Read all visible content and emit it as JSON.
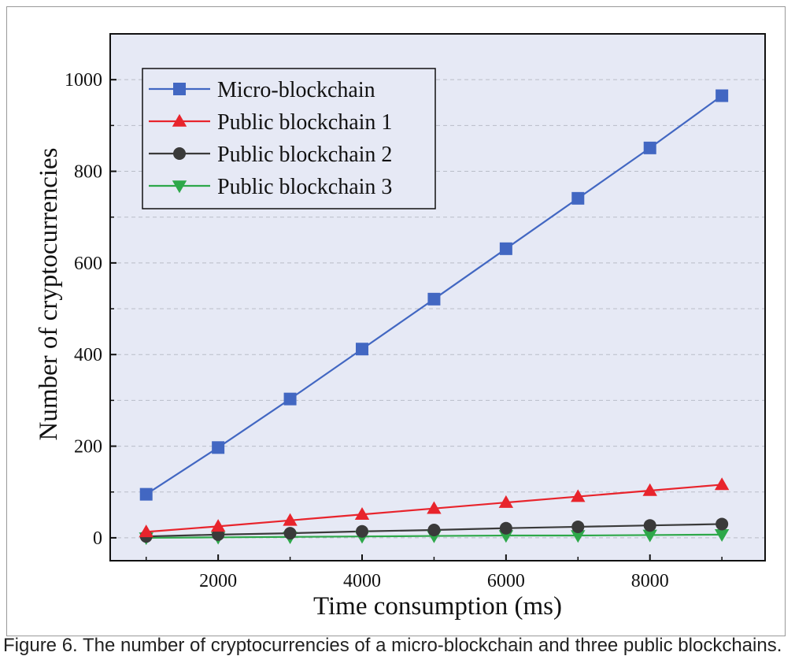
{
  "colors": {
    "plot_background": "#e6e9f5",
    "grid": "#b9bdc8",
    "axis": "#111111",
    "micro": "#4267c2",
    "public1": "#e8242c",
    "public2": "#3a3a3a",
    "public3": "#2ea84a"
  },
  "caption": "Figure 6. The number of cryptocurrencies of a micro-blockchain and three public blockchains.",
  "chart_data": {
    "type": "line",
    "title": "",
    "xlabel": "Time consumption (ms)",
    "ylabel": "Number of cryptocurrencies",
    "xlim": [
      500,
      9600
    ],
    "ylim": [
      -50,
      1100
    ],
    "xticks": [
      2000,
      4000,
      6000,
      8000
    ],
    "yticks": [
      0,
      200,
      400,
      600,
      800,
      1000
    ],
    "grid": true,
    "legend_position": "top-left",
    "x": [
      1000,
      2000,
      3000,
      4000,
      5000,
      6000,
      7000,
      8000,
      9000
    ],
    "series": [
      {
        "name": "Micro-blockchain",
        "marker": "square",
        "color": "#4267c2",
        "values": [
          95,
          197,
          303,
          412,
          521,
          631,
          741,
          851,
          965
        ]
      },
      {
        "name": "Public blockchain 1",
        "marker": "triangle-up",
        "color": "#e8242c",
        "values": [
          13,
          25,
          38,
          51,
          64,
          77,
          90,
          103,
          116
        ]
      },
      {
        "name": "Public blockchain 2",
        "marker": "circle",
        "color": "#3a3a3a",
        "values": [
          3,
          7,
          10,
          14,
          17,
          21,
          24,
          27,
          30
        ]
      },
      {
        "name": "Public blockchain 3",
        "marker": "triangle-down",
        "color": "#2ea84a",
        "values": [
          0,
          1,
          2,
          3,
          4,
          5,
          5,
          6,
          7
        ]
      }
    ]
  }
}
